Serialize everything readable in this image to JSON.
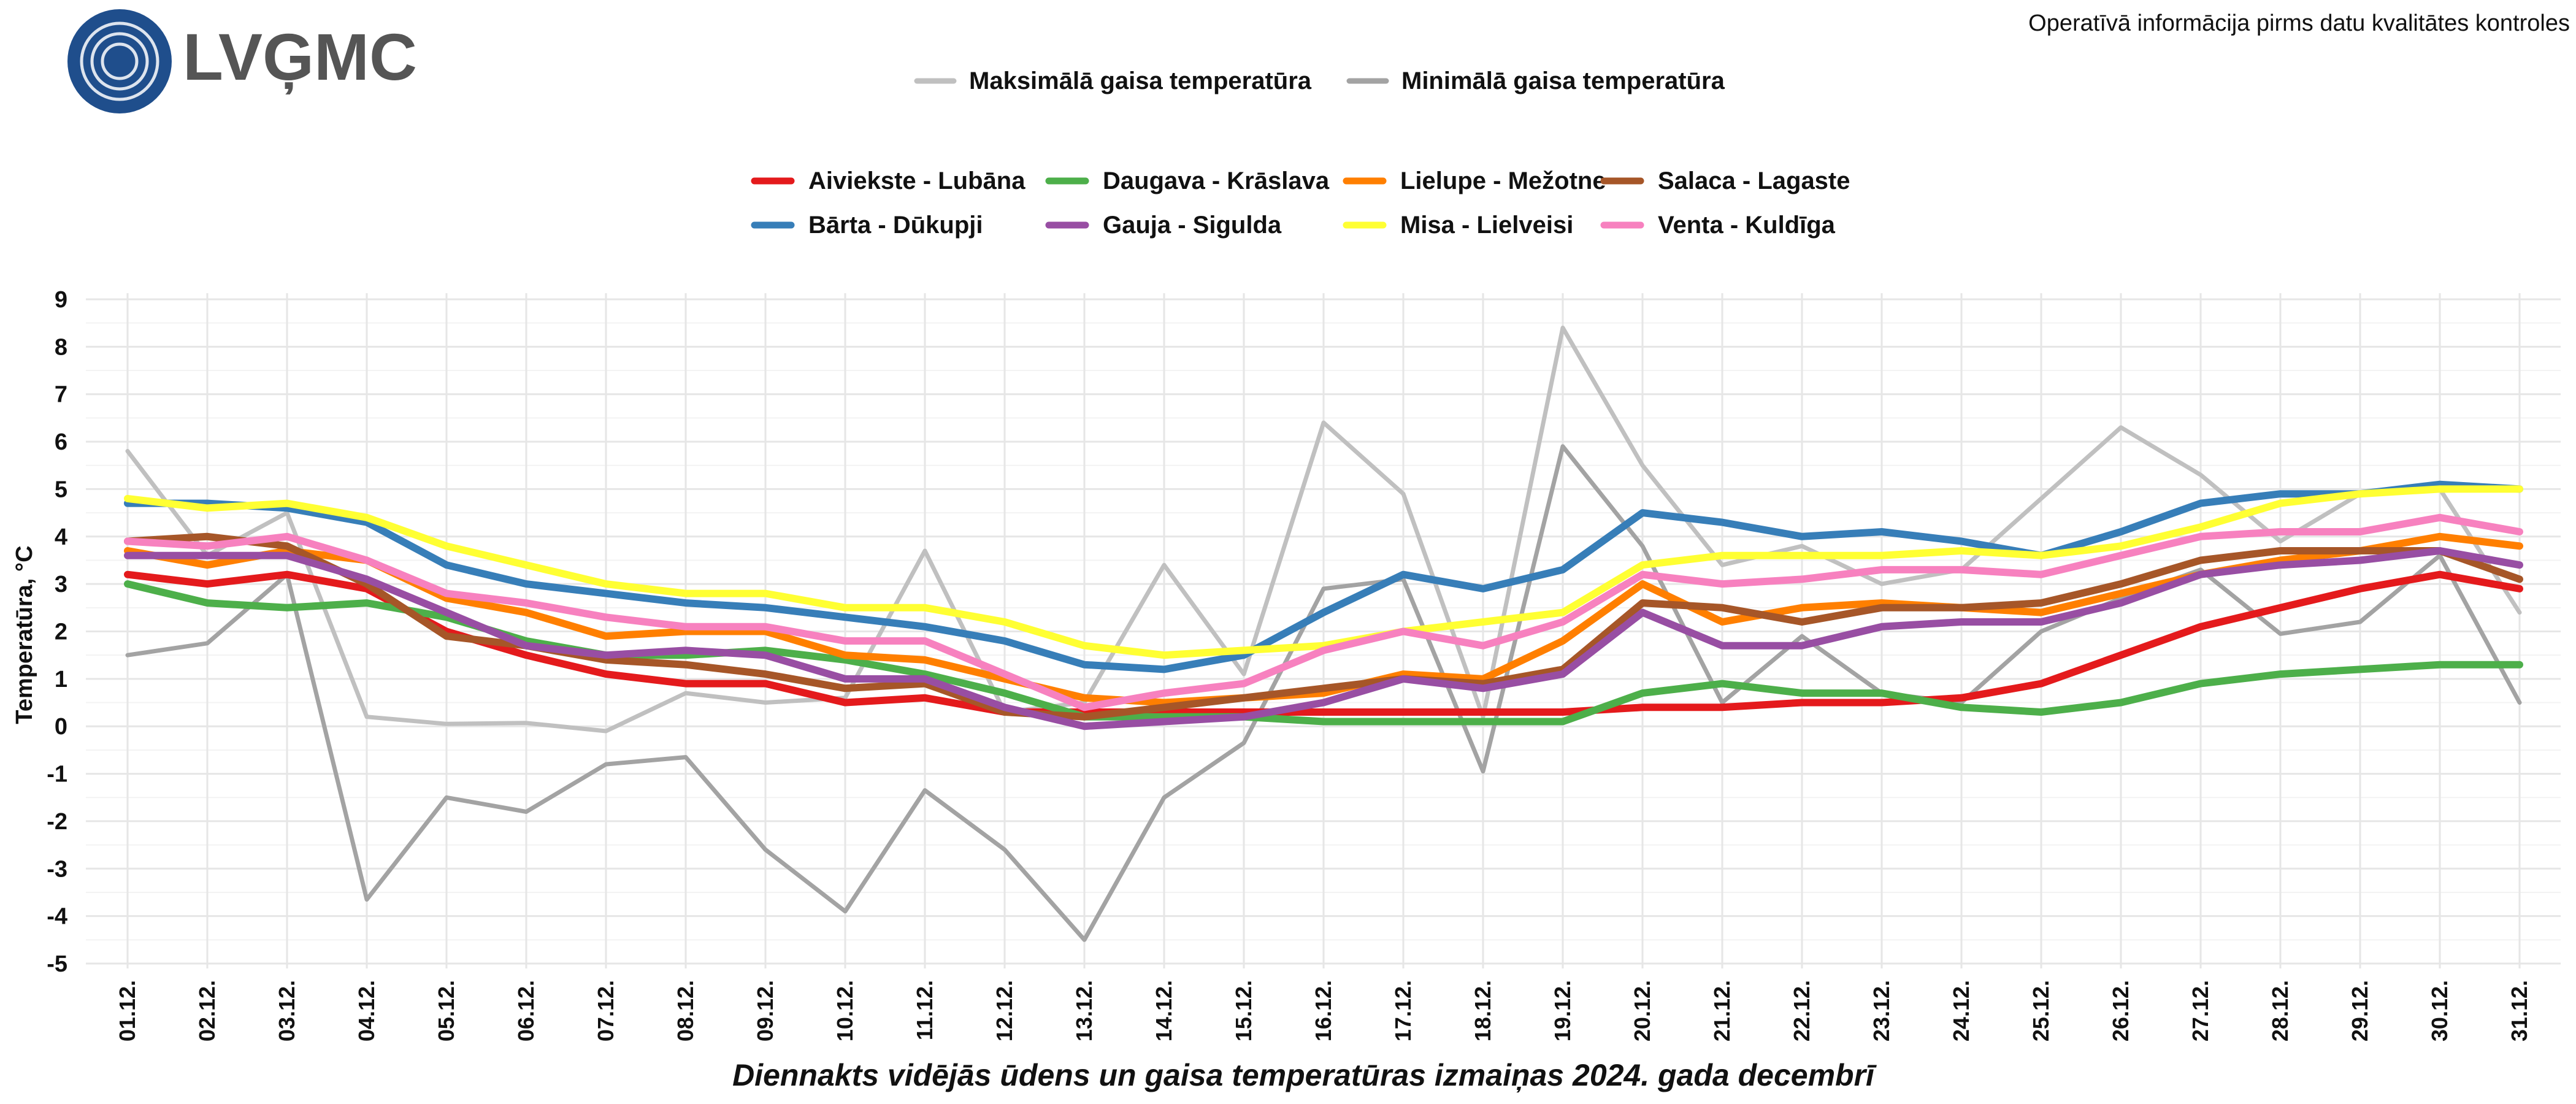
{
  "header": {
    "logo_text": "LVĢMC",
    "note": "Operatīvā informācija pirms datu kvalitātes kontroles"
  },
  "colors": {
    "logo_circle": "#1f4e8c",
    "logo_text": "#555555",
    "grid": "#e6e6e6",
    "axis_text": "#111111"
  },
  "chart_data": {
    "type": "line",
    "title": "Diennakts vidējās ūdens un gaisa temperatūras izmaiņas 2024. gada decembrī",
    "xlabel": "",
    "ylabel": "Temperatūra, °C",
    "ylim": [
      -5,
      9
    ],
    "yticks": [
      "9",
      "8",
      "7",
      "6",
      "5",
      "4",
      "3",
      "2",
      "1",
      "0",
      "-1",
      "-2",
      "-3",
      "-4",
      "-5"
    ],
    "grid": true,
    "categories": [
      "01.12.",
      "02.12.",
      "03.12.",
      "04.12.",
      "05.12.",
      "06.12.",
      "07.12.",
      "08.12.",
      "09.12.",
      "10.12.",
      "11.12.",
      "12.12.",
      "13.12.",
      "14.12.",
      "15.12.",
      "16.12.",
      "17.12.",
      "18.12.",
      "19.12.",
      "20.12.",
      "21.12.",
      "22.12.",
      "23.12.",
      "24.12.",
      "25.12.",
      "26.12.",
      "27.12.",
      "28.12.",
      "29.12.",
      "30.12.",
      "31.12."
    ],
    "air_series": [
      {
        "name": "Maksimālā gaisa temperatūra",
        "color": "#c0c0c0",
        "values": [
          5.8,
          3.6,
          4.5,
          0.2,
          0.05,
          0.07,
          -0.1,
          0.7,
          0.5,
          0.6,
          3.7,
          0.3,
          0.5,
          3.4,
          1.1,
          6.4,
          4.9,
          0.2,
          8.4,
          5.5,
          3.4,
          3.8,
          3.0,
          3.3,
          4.8,
          6.3,
          5.3,
          3.9,
          4.9,
          5.0,
          2.4
        ]
      },
      {
        "name": "Minimālā gaisa temperatūra",
        "color": "#a3a3a3",
        "values": [
          1.5,
          1.75,
          3.2,
          -3.65,
          -1.5,
          -1.8,
          -0.8,
          -0.65,
          -2.6,
          -3.9,
          -1.35,
          -2.6,
          -4.5,
          -1.5,
          -0.35,
          2.9,
          3.1,
          -0.95,
          5.9,
          3.8,
          0.5,
          1.9,
          0.7,
          0.5,
          2.0,
          2.7,
          3.3,
          1.95,
          2.2,
          3.6,
          0.5
        ]
      }
    ],
    "water_series": [
      {
        "name": "Aiviekste - Lubāna",
        "color": "#e41a1c",
        "values": [
          3.2,
          3.0,
          3.2,
          2.9,
          2.0,
          1.5,
          1.1,
          0.9,
          0.9,
          0.5,
          0.6,
          0.3,
          0.3,
          0.3,
          0.3,
          0.3,
          0.3,
          0.3,
          0.3,
          0.4,
          0.4,
          0.5,
          0.5,
          0.6,
          0.9,
          1.5,
          2.1,
          2.5,
          2.9,
          3.2,
          2.9
        ]
      },
      {
        "name": "Daugava - Krāslava",
        "color": "#4daf4a",
        "values": [
          3.0,
          2.6,
          2.5,
          2.6,
          2.3,
          1.8,
          1.5,
          1.5,
          1.6,
          1.4,
          1.1,
          0.7,
          0.2,
          0.2,
          0.2,
          0.1,
          0.1,
          0.1,
          0.1,
          0.7,
          0.9,
          0.7,
          0.7,
          0.4,
          0.3,
          0.5,
          0.9,
          1.1,
          1.2,
          1.3,
          1.3
        ]
      },
      {
        "name": "Lielupe - Mežotne",
        "color": "#ff7f00",
        "values": [
          3.7,
          3.4,
          3.7,
          3.5,
          2.7,
          2.4,
          1.9,
          2.0,
          2.0,
          1.5,
          1.4,
          1.0,
          0.6,
          0.5,
          0.6,
          0.7,
          1.1,
          1.0,
          1.8,
          3.0,
          2.2,
          2.5,
          2.6,
          2.5,
          2.4,
          2.8,
          3.2,
          3.5,
          3.7,
          4.0,
          3.8
        ]
      },
      {
        "name": "Salaca - Lagaste",
        "color": "#a65628",
        "values": [
          3.9,
          4.0,
          3.8,
          3.0,
          1.9,
          1.7,
          1.4,
          1.3,
          1.1,
          0.8,
          0.9,
          0.3,
          0.2,
          0.4,
          0.6,
          0.8,
          1.0,
          0.9,
          1.2,
          2.6,
          2.5,
          2.2,
          2.5,
          2.5,
          2.6,
          3.0,
          3.5,
          3.7,
          3.7,
          3.7,
          3.1
        ]
      },
      {
        "name": "Bārta - Dūkupji",
        "color": "#377eb8",
        "values": [
          4.7,
          4.7,
          4.6,
          4.3,
          3.4,
          3.0,
          2.8,
          2.6,
          2.5,
          2.3,
          2.1,
          1.8,
          1.3,
          1.2,
          1.5,
          2.4,
          3.2,
          2.9,
          3.3,
          4.5,
          4.3,
          4.0,
          4.1,
          3.9,
          3.6,
          4.1,
          4.7,
          4.9,
          4.9,
          5.1,
          5.0
        ]
      },
      {
        "name": "Gauja - Sigulda",
        "color": "#984ea3",
        "values": [
          3.6,
          3.6,
          3.6,
          3.1,
          2.4,
          1.7,
          1.5,
          1.6,
          1.5,
          1.0,
          1.0,
          0.4,
          0.0,
          0.1,
          0.2,
          0.5,
          1.0,
          0.8,
          1.1,
          2.4,
          1.7,
          1.7,
          2.1,
          2.2,
          2.2,
          2.6,
          3.2,
          3.4,
          3.5,
          3.7,
          3.4
        ]
      },
      {
        "name": "Misa - Lielveisi",
        "color": "#ffff33",
        "values": [
          4.8,
          4.6,
          4.7,
          4.4,
          3.8,
          3.4,
          3.0,
          2.8,
          2.8,
          2.5,
          2.5,
          2.2,
          1.7,
          1.5,
          1.6,
          1.7,
          2.0,
          2.2,
          2.4,
          3.4,
          3.6,
          3.6,
          3.6,
          3.7,
          3.6,
          3.8,
          4.2,
          4.7,
          4.9,
          5.0,
          5.0
        ]
      },
      {
        "name": "Venta - Kuldīga",
        "color": "#f781bf",
        "values": [
          3.9,
          3.8,
          4.0,
          3.5,
          2.8,
          2.6,
          2.3,
          2.1,
          2.1,
          1.8,
          1.8,
          1.1,
          0.4,
          0.7,
          0.9,
          1.6,
          2.0,
          1.7,
          2.2,
          3.2,
          3.0,
          3.1,
          3.3,
          3.3,
          3.2,
          3.6,
          4.0,
          4.1,
          4.1,
          4.4,
          4.1
        ]
      }
    ],
    "water_legend_order": [
      0,
      1,
      2,
      3,
      4,
      5,
      6,
      7
    ]
  }
}
